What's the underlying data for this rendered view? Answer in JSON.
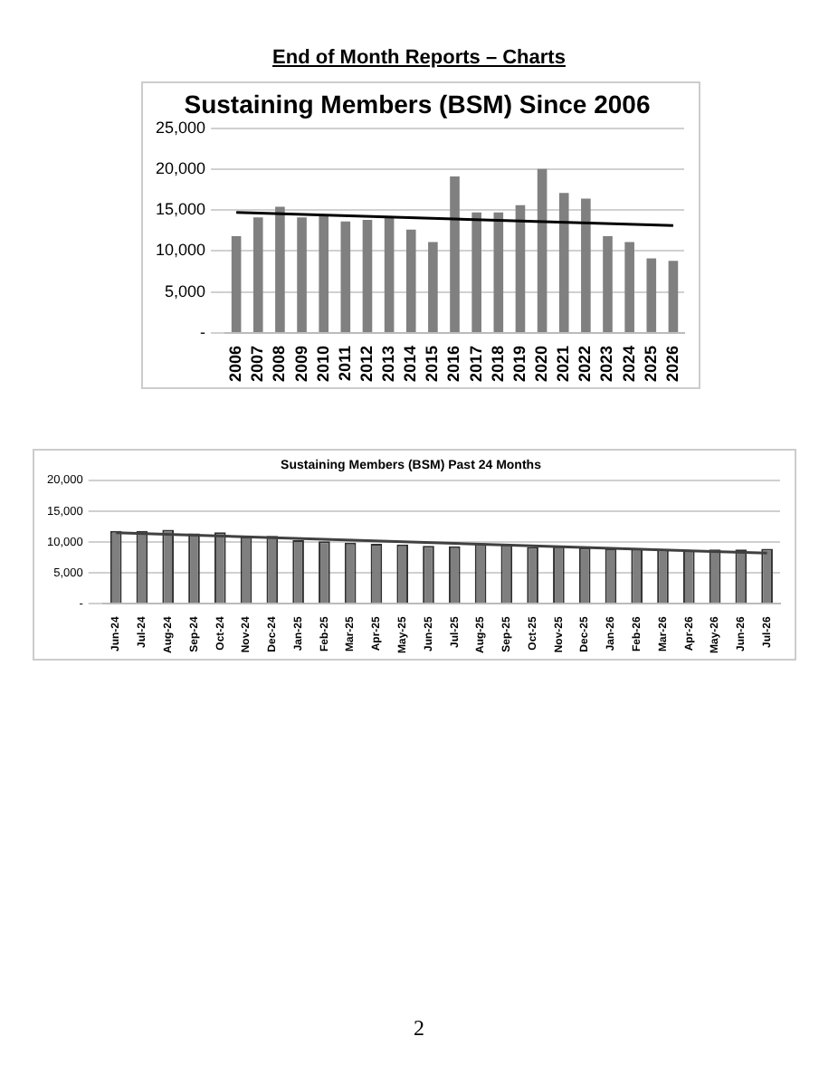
{
  "chart_data": [
    {
      "type": "bar",
      "title": "Sustaining Members (BSM) Since 2006",
      "annotations": [
        "End of Month Reports – Charts"
      ],
      "categories": [
        "2006",
        "2007",
        "2008",
        "2009",
        "2010",
        "2011",
        "2012",
        "2013",
        "2014",
        "2015",
        "2016",
        "2017",
        "2018",
        "2019",
        "2020",
        "2021",
        "2022",
        "2023",
        "2024",
        "2025",
        "2026"
      ],
      "series": [
        {
          "color": "#808080",
          "values": [
            11800,
            14100,
            15400,
            14100,
            14300,
            13600,
            13800,
            14100,
            12600,
            11100,
            19100,
            14700,
            14700,
            15600,
            20000,
            17100,
            16400,
            11800,
            11100,
            9100,
            8800
          ]
        },
        {
          "type": "line",
          "color": "#000000",
          "values": [
            14700,
            null,
            null,
            null,
            null,
            null,
            null,
            null,
            null,
            null,
            null,
            null,
            null,
            null,
            null,
            null,
            null,
            null,
            null,
            null,
            13100
          ]
        }
      ],
      "ylim": [
        0,
        25000
      ],
      "yticks": [
        {
          "value": 0,
          "label": "-"
        },
        {
          "value": 5000,
          "label": "5,000"
        },
        {
          "value": 10000,
          "label": "10,000"
        },
        {
          "value": 15000,
          "label": "15,000"
        },
        {
          "value": 20000,
          "label": "20,000"
        },
        {
          "value": 25000,
          "label": "25,000"
        }
      ],
      "grid": "y",
      "legend": false
    },
    {
      "type": "bar",
      "title": "Sustaining Members (BSM) Past 24 Months",
      "annotations": [
        "2"
      ],
      "categories": [
        "Jun-24",
        "Jul-24",
        "Aug-24",
        "Sep-24",
        "Oct-24",
        "Nov-24",
        "Dec-24",
        "Jan-25",
        "Feb-25",
        "Mar-25",
        "Apr-25",
        "May-25",
        "Jun-25",
        "Jul-25",
        "Aug-25",
        "Sep-25",
        "Oct-25",
        "Nov-25",
        "Dec-25",
        "Jan-26",
        "Feb-26",
        "Mar-26",
        "Apr-26",
        "May-26",
        "Jun-26",
        "Jul-26"
      ],
      "series": [
        {
          "color": "#7f7f7f",
          "values": [
            11800,
            11800,
            12000,
            11400,
            11600,
            10900,
            11000,
            10300,
            10100,
            9900,
            9700,
            9600,
            9400,
            9300,
            9800,
            9600,
            9200,
            9300,
            9100,
            9000,
            8900,
            8800,
            8700,
            8800,
            8800,
            8900
          ]
        },
        {
          "type": "line",
          "color": "#404040",
          "values": [
            11500,
            null,
            null,
            null,
            null,
            null,
            null,
            null,
            null,
            null,
            null,
            null,
            null,
            null,
            null,
            null,
            null,
            null,
            null,
            null,
            null,
            null,
            null,
            null,
            null,
            8200
          ]
        }
      ],
      "ylim": [
        0,
        20000
      ],
      "yticks": [
        {
          "value": 0,
          "label": "-"
        },
        {
          "value": 5000,
          "label": "5,000"
        },
        {
          "value": 10000,
          "label": "10,000"
        },
        {
          "value": 15000,
          "label": "15,000"
        },
        {
          "value": 20000,
          "label": "20,000"
        }
      ],
      "grid": "y",
      "legend": false
    }
  ]
}
